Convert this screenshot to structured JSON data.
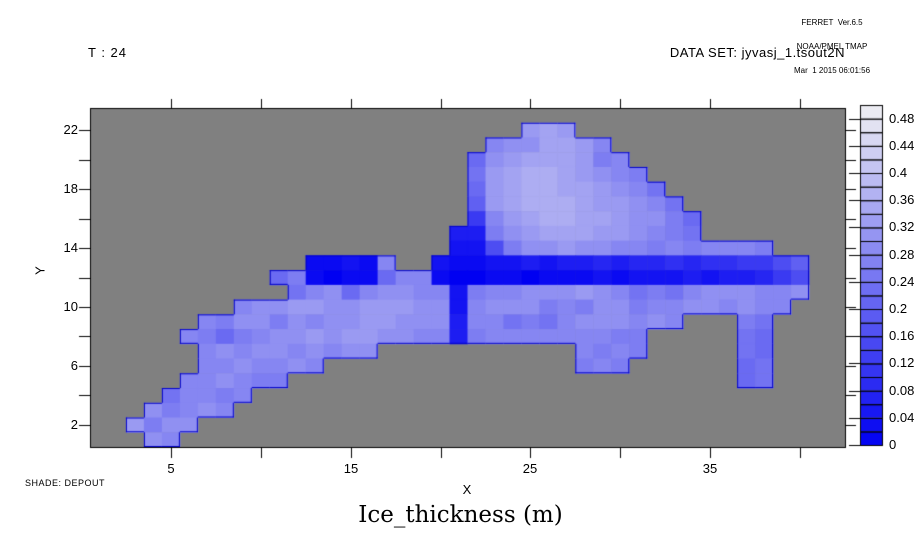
{
  "header": {
    "ferret_line1": "FERRET  Ver.6.5",
    "ferret_line2": "NOAA/PMEL TMAP",
    "ferret_line3": "Mar  1 2015 06:01:56",
    "time_label": "T : 24",
    "dataset_label": "DATA SET: jyvasj_1.tsout2N"
  },
  "footer": {
    "shade_label": "SHADE: DEPOUT",
    "title": "Ice_thickness (m)"
  },
  "axes": {
    "x": {
      "title": "X",
      "ticks": [
        5,
        10,
        15,
        20,
        25,
        30,
        35,
        40
      ],
      "tick_labels": [
        {
          "value": 5,
          "text": "5"
        },
        {
          "value": 15,
          "text": "15"
        },
        {
          "value": 25,
          "text": "25"
        },
        {
          "value": 35,
          "text": "35"
        }
      ]
    },
    "y": {
      "title": "Y",
      "ticks": [
        2,
        4,
        6,
        8,
        10,
        12,
        14,
        16,
        18,
        20,
        22
      ],
      "tick_labels": [
        {
          "value": 2,
          "text": "2"
        },
        {
          "value": 6,
          "text": "6"
        },
        {
          "value": 10,
          "text": "10"
        },
        {
          "value": 14,
          "text": "14"
        },
        {
          "value": 18,
          "text": "18"
        },
        {
          "value": 22,
          "text": "22"
        }
      ]
    }
  },
  "colorbar": {
    "min": 0,
    "max": 0.5,
    "cell_step": 0.02,
    "n_cells": 25,
    "tick_labels": [
      {
        "value": 0,
        "text": "0"
      },
      {
        "value": 0.04,
        "text": "0.04"
      },
      {
        "value": 0.08,
        "text": "0.08"
      },
      {
        "value": 0.12,
        "text": "0.12"
      },
      {
        "value": 0.16,
        "text": "0.16"
      },
      {
        "value": 0.2,
        "text": "0.2"
      },
      {
        "value": 0.24,
        "text": "0.24"
      },
      {
        "value": 0.28,
        "text": "0.28"
      },
      {
        "value": 0.32,
        "text": "0.32"
      },
      {
        "value": 0.36,
        "text": "0.36"
      },
      {
        "value": 0.4,
        "text": "0.4"
      },
      {
        "value": 0.44,
        "text": "0.44"
      },
      {
        "value": 0.48,
        "text": "0.48"
      }
    ],
    "low_color": "#0000F0",
    "high_color": "#F0F0F0"
  },
  "chart_data": {
    "type": "heatmap",
    "title": "Ice_thickness (m)",
    "units": "m",
    "xlabel": "X",
    "ylabel": "Y",
    "x_range": [
      0.5,
      42.5
    ],
    "y_range": [
      0.5,
      23.5
    ],
    "nx": 42,
    "ny": 23,
    "value_range": [
      0,
      0.5
    ],
    "missing_color": "#808080",
    "outline_color": "#0000CC",
    "rows_top_to_bottom": [
      [
        null,
        null,
        null,
        null,
        null,
        null,
        null,
        null,
        null,
        null,
        null,
        null,
        null,
        null,
        null,
        null,
        null,
        null,
        null,
        null,
        null,
        null,
        null,
        null,
        null,
        null,
        null,
        null,
        null,
        null,
        null,
        null,
        null,
        null,
        null,
        null,
        null,
        null,
        null,
        null,
        null,
        null
      ],
      [
        null,
        null,
        null,
        null,
        null,
        null,
        null,
        null,
        null,
        null,
        null,
        null,
        null,
        null,
        null,
        null,
        null,
        null,
        null,
        null,
        null,
        null,
        null,
        null,
        0.32,
        0.34,
        0.32,
        null,
        null,
        null,
        null,
        null,
        null,
        null,
        null,
        null,
        null,
        null,
        null,
        null,
        null,
        null
      ],
      [
        null,
        null,
        null,
        null,
        null,
        null,
        null,
        null,
        null,
        null,
        null,
        null,
        null,
        null,
        null,
        null,
        null,
        null,
        null,
        null,
        null,
        null,
        0.28,
        0.3,
        0.3,
        0.34,
        0.34,
        0.32,
        0.28,
        null,
        null,
        null,
        null,
        null,
        null,
        null,
        null,
        null,
        null,
        null,
        null,
        null
      ],
      [
        null,
        null,
        null,
        null,
        null,
        null,
        null,
        null,
        null,
        null,
        null,
        null,
        null,
        null,
        null,
        null,
        null,
        null,
        null,
        null,
        null,
        0.22,
        0.3,
        0.32,
        0.34,
        0.34,
        0.34,
        0.32,
        0.26,
        0.28,
        null,
        null,
        null,
        null,
        null,
        null,
        null,
        null,
        null,
        null,
        null,
        null
      ],
      [
        null,
        null,
        null,
        null,
        null,
        null,
        null,
        null,
        null,
        null,
        null,
        null,
        null,
        null,
        null,
        null,
        null,
        null,
        null,
        null,
        null,
        0.24,
        0.32,
        0.34,
        0.36,
        0.36,
        0.34,
        0.32,
        0.3,
        0.28,
        0.26,
        null,
        null,
        null,
        null,
        null,
        null,
        null,
        null,
        null,
        null,
        null
      ],
      [
        null,
        null,
        null,
        null,
        null,
        null,
        null,
        null,
        null,
        null,
        null,
        null,
        null,
        null,
        null,
        null,
        null,
        null,
        null,
        null,
        null,
        0.22,
        0.32,
        0.34,
        0.36,
        0.36,
        0.34,
        0.34,
        0.32,
        0.3,
        0.28,
        0.24,
        null,
        null,
        null,
        null,
        null,
        null,
        null,
        null,
        null,
        null
      ],
      [
        null,
        null,
        null,
        null,
        null,
        null,
        null,
        null,
        null,
        null,
        null,
        null,
        null,
        null,
        null,
        null,
        null,
        null,
        null,
        null,
        null,
        0.2,
        0.32,
        0.34,
        0.36,
        0.36,
        0.36,
        0.34,
        0.32,
        0.32,
        0.3,
        0.28,
        0.24,
        null,
        null,
        null,
        null,
        null,
        null,
        null,
        null,
        null
      ],
      [
        null,
        null,
        null,
        null,
        null,
        null,
        null,
        null,
        null,
        null,
        null,
        null,
        null,
        null,
        null,
        null,
        null,
        null,
        null,
        null,
        null,
        0.12,
        0.28,
        0.32,
        0.34,
        0.36,
        0.36,
        0.34,
        0.34,
        0.32,
        0.3,
        0.3,
        0.26,
        0.22,
        null,
        null,
        null,
        null,
        null,
        null,
        null,
        null
      ],
      [
        null,
        null,
        null,
        null,
        null,
        null,
        null,
        null,
        null,
        null,
        null,
        null,
        null,
        null,
        null,
        null,
        null,
        null,
        null,
        null,
        0.06,
        0.06,
        0.26,
        0.3,
        0.32,
        0.34,
        0.34,
        0.34,
        0.32,
        0.32,
        0.3,
        0.28,
        0.26,
        0.24,
        null,
        null,
        null,
        null,
        null,
        null,
        null,
        null
      ],
      [
        null,
        null,
        null,
        null,
        null,
        null,
        null,
        null,
        null,
        null,
        null,
        null,
        null,
        null,
        null,
        null,
        null,
        null,
        null,
        null,
        0.04,
        0.04,
        0.16,
        0.26,
        0.3,
        0.3,
        0.32,
        0.3,
        0.3,
        0.28,
        0.28,
        0.26,
        0.28,
        0.26,
        0.28,
        0.28,
        0.28,
        0.26,
        null,
        null,
        null,
        null
      ],
      [
        null,
        null,
        null,
        null,
        null,
        null,
        null,
        null,
        null,
        null,
        null,
        null,
        0.02,
        0.02,
        0.04,
        0.02,
        0.28,
        null,
        null,
        0.04,
        0.02,
        0.02,
        0.04,
        0.04,
        0.06,
        0.04,
        0.06,
        0.06,
        0.08,
        0.06,
        0.08,
        0.08,
        0.1,
        0.08,
        0.1,
        0.1,
        0.12,
        0.12,
        0.16,
        0.2,
        null,
        null
      ],
      [
        null,
        null,
        null,
        null,
        null,
        null,
        null,
        null,
        null,
        null,
        0.22,
        0.26,
        0.02,
        0.0,
        0.02,
        0.02,
        0.22,
        0.28,
        0.28,
        0.02,
        0.0,
        0.0,
        0.02,
        0.02,
        0.0,
        0.02,
        0.02,
        0.02,
        0.04,
        0.02,
        0.04,
        0.04,
        0.04,
        0.06,
        0.04,
        0.06,
        0.06,
        0.08,
        0.12,
        0.16,
        null,
        null
      ],
      [
        null,
        null,
        null,
        null,
        null,
        null,
        null,
        null,
        null,
        null,
        null,
        0.24,
        0.28,
        0.3,
        0.22,
        0.28,
        0.3,
        0.3,
        0.28,
        0.28,
        0.04,
        0.26,
        0.28,
        0.28,
        0.3,
        0.3,
        0.3,
        0.32,
        0.3,
        0.28,
        0.24,
        0.26,
        0.24,
        0.28,
        0.3,
        0.3,
        0.3,
        0.28,
        0.28,
        0.3,
        null,
        null
      ],
      [
        null,
        null,
        null,
        null,
        null,
        null,
        null,
        null,
        0.28,
        0.3,
        0.3,
        0.32,
        0.32,
        0.3,
        0.3,
        0.32,
        0.32,
        0.32,
        0.3,
        0.3,
        0.04,
        0.28,
        0.3,
        0.3,
        0.3,
        0.26,
        0.28,
        0.26,
        0.3,
        0.3,
        0.26,
        0.28,
        0.28,
        0.3,
        0.3,
        0.28,
        0.3,
        0.28,
        0.28,
        null,
        null,
        null
      ],
      [
        null,
        null,
        null,
        null,
        null,
        null,
        0.28,
        0.26,
        0.3,
        0.3,
        0.26,
        0.3,
        0.28,
        0.3,
        0.3,
        0.32,
        0.32,
        0.3,
        0.3,
        0.3,
        0.06,
        0.28,
        0.28,
        0.24,
        0.26,
        0.24,
        0.28,
        0.3,
        0.3,
        0.3,
        0.28,
        0.3,
        0.28,
        null,
        null,
        null,
        0.26,
        0.24,
        null,
        null,
        null,
        null
      ],
      [
        null,
        null,
        null,
        null,
        null,
        0.28,
        0.26,
        0.22,
        0.26,
        0.28,
        0.3,
        0.3,
        0.32,
        0.3,
        0.32,
        0.32,
        0.3,
        0.3,
        0.28,
        0.28,
        0.06,
        0.26,
        0.28,
        0.28,
        0.28,
        0.28,
        0.28,
        0.28,
        0.28,
        0.26,
        0.26,
        null,
        null,
        null,
        null,
        null,
        0.24,
        0.22,
        null,
        null,
        null,
        null
      ],
      [
        null,
        null,
        null,
        null,
        null,
        null,
        0.28,
        0.3,
        0.28,
        0.3,
        0.3,
        0.28,
        0.3,
        0.28,
        0.3,
        0.3,
        null,
        null,
        null,
        null,
        null,
        null,
        null,
        null,
        null,
        null,
        null,
        0.28,
        0.26,
        0.28,
        0.26,
        null,
        null,
        null,
        null,
        null,
        0.24,
        0.22,
        null,
        null,
        null,
        null
      ],
      [
        null,
        null,
        null,
        null,
        null,
        null,
        0.28,
        0.28,
        0.3,
        0.28,
        0.28,
        0.3,
        0.28,
        null,
        null,
        null,
        null,
        null,
        null,
        null,
        null,
        null,
        null,
        null,
        null,
        null,
        null,
        0.26,
        0.28,
        0.26,
        null,
        null,
        null,
        null,
        null,
        null,
        0.22,
        0.24,
        null,
        null,
        null,
        null
      ],
      [
        null,
        null,
        null,
        null,
        null,
        0.28,
        0.28,
        0.3,
        0.28,
        0.26,
        0.26,
        null,
        null,
        null,
        null,
        null,
        null,
        null,
        null,
        null,
        null,
        null,
        null,
        null,
        null,
        null,
        null,
        null,
        null,
        null,
        null,
        null,
        null,
        null,
        null,
        null,
        0.22,
        0.24,
        null,
        null,
        null,
        null
      ],
      [
        null,
        null,
        null,
        null,
        0.24,
        0.28,
        0.28,
        0.26,
        0.28,
        null,
        null,
        null,
        null,
        null,
        null,
        null,
        null,
        null,
        null,
        null,
        null,
        null,
        null,
        null,
        null,
        null,
        null,
        null,
        null,
        null,
        null,
        null,
        null,
        null,
        null,
        null,
        null,
        null,
        null,
        null,
        null,
        null
      ],
      [
        null,
        null,
        null,
        0.3,
        0.26,
        0.28,
        0.3,
        0.28,
        null,
        null,
        null,
        null,
        null,
        null,
        null,
        null,
        null,
        null,
        null,
        null,
        null,
        null,
        null,
        null,
        null,
        null,
        null,
        null,
        null,
        null,
        null,
        null,
        null,
        null,
        null,
        null,
        null,
        null,
        null,
        null,
        null,
        null
      ],
      [
        null,
        null,
        0.32,
        0.26,
        0.3,
        0.3,
        null,
        null,
        null,
        null,
        null,
        null,
        null,
        null,
        null,
        null,
        null,
        null,
        null,
        null,
        null,
        null,
        null,
        null,
        null,
        null,
        null,
        null,
        null,
        null,
        null,
        null,
        null,
        null,
        null,
        null,
        null,
        null,
        null,
        null,
        null,
        null
      ],
      [
        null,
        null,
        null,
        0.3,
        0.28,
        null,
        null,
        null,
        null,
        null,
        null,
        null,
        null,
        null,
        null,
        null,
        null,
        null,
        null,
        null,
        null,
        null,
        null,
        null,
        null,
        null,
        null,
        null,
        null,
        null,
        null,
        null,
        null,
        null,
        null,
        null,
        null,
        null,
        null,
        null,
        null,
        null
      ]
    ]
  }
}
